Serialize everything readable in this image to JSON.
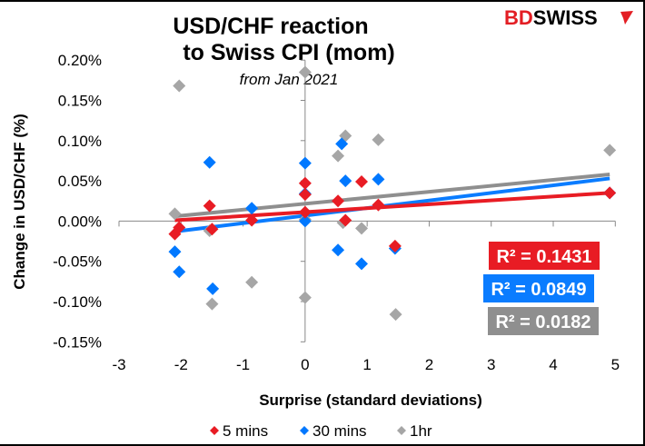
{
  "logo": {
    "part1": "BD",
    "part2": "SWISS",
    "color_bd": "#e31e24",
    "color_swiss": "#000000"
  },
  "chart_data": {
    "type": "scatter",
    "title": "USD/CHF reaction to Swiss CPI (mom)",
    "title_lines": [
      "USD/CHF reaction",
      "to Swiss CPI (mom)"
    ],
    "subtitle": "from Jan 2021",
    "xlabel": "Surprise (standard deviations)",
    "ylabel": "Change in USD/CHF (%)",
    "xlim": [
      -3,
      5
    ],
    "ylim": [
      -0.15,
      0.2
    ],
    "x_ticks": [
      -3,
      -2,
      -1,
      0,
      1,
      2,
      3,
      4,
      5
    ],
    "x_tick_labels": [
      "-3",
      "-2",
      "-1",
      "0",
      "1",
      "2",
      "3",
      "4",
      "5"
    ],
    "y_ticks": [
      -0.15,
      -0.1,
      -0.05,
      0.0,
      0.05,
      0.1,
      0.15,
      0.2
    ],
    "y_tick_labels": [
      "-0.15%",
      "-0.10%",
      "-0.05%",
      "0.00%",
      "0.05%",
      "0.10%",
      "0.15%",
      "0.20%"
    ],
    "grid": false,
    "legend_position": "bottom",
    "series": [
      {
        "name": "1hr",
        "color": "#a6a6a6",
        "trend_color": "#8f8f8f",
        "r2_label": "R² = 0.0182",
        "trend": [
          [
            -2.1,
            0.006
          ],
          [
            4.91,
            0.058
          ]
        ],
        "points": [
          [
            -2.03,
            0.168
          ],
          [
            0,
            0.185
          ],
          [
            -2.1,
            0.009
          ],
          [
            -1.54,
            -0.012
          ],
          [
            -1.5,
            -0.103
          ],
          [
            -0.86,
            -0.076
          ],
          [
            0,
            -0.095
          ],
          [
            0,
            0.002
          ],
          [
            0.53,
            0.081
          ],
          [
            0.65,
            0.106
          ],
          [
            0.61,
            -0.002
          ],
          [
            0.91,
            -0.009
          ],
          [
            1.18,
            0.101
          ],
          [
            1.46,
            -0.116
          ],
          [
            4.91,
            0.088
          ]
        ]
      },
      {
        "name": "30 mins",
        "color": "#0078ff",
        "trend_color": "#0a7cff",
        "r2_label": "R² = 0.0849",
        "trend": [
          [
            -2.1,
            -0.013
          ],
          [
            4.91,
            0.053
          ]
        ],
        "points": [
          [
            -1.54,
            0.073
          ],
          [
            -2.1,
            -0.038
          ],
          [
            -2.03,
            -0.063
          ],
          [
            -1.49,
            -0.084
          ],
          [
            -0.86,
            0.016
          ],
          [
            0,
            0.072
          ],
          [
            0,
            0.034
          ],
          [
            0,
            0.0
          ],
          [
            0.59,
            0.096
          ],
          [
            0.65,
            0.05
          ],
          [
            0.53,
            -0.036
          ],
          [
            0.91,
            -0.053
          ],
          [
            1.18,
            0.052
          ],
          [
            1.45,
            -0.034
          ],
          [
            4.91,
            0.035
          ]
        ]
      },
      {
        "name": "5 mins",
        "color": "#e81c24",
        "trend_color": "#e81c24",
        "r2_label": "R² = 0.1431",
        "trend": [
          [
            -2.1,
            0.001
          ],
          [
            4.91,
            0.035
          ]
        ],
        "points": [
          [
            -1.54,
            0.019
          ],
          [
            -2.1,
            -0.016
          ],
          [
            -2.03,
            -0.008
          ],
          [
            -1.5,
            -0.01
          ],
          [
            -0.86,
            0.001
          ],
          [
            0,
            0.047
          ],
          [
            0,
            0.033
          ],
          [
            0,
            0.011
          ],
          [
            0.53,
            0.025
          ],
          [
            0.65,
            0.001
          ],
          [
            0.91,
            0.049
          ],
          [
            1.18,
            0.02
          ],
          [
            1.45,
            -0.031
          ],
          [
            4.91,
            0.035
          ]
        ]
      }
    ],
    "legend_order": [
      "5 mins",
      "30 mins",
      "1hr"
    ]
  }
}
